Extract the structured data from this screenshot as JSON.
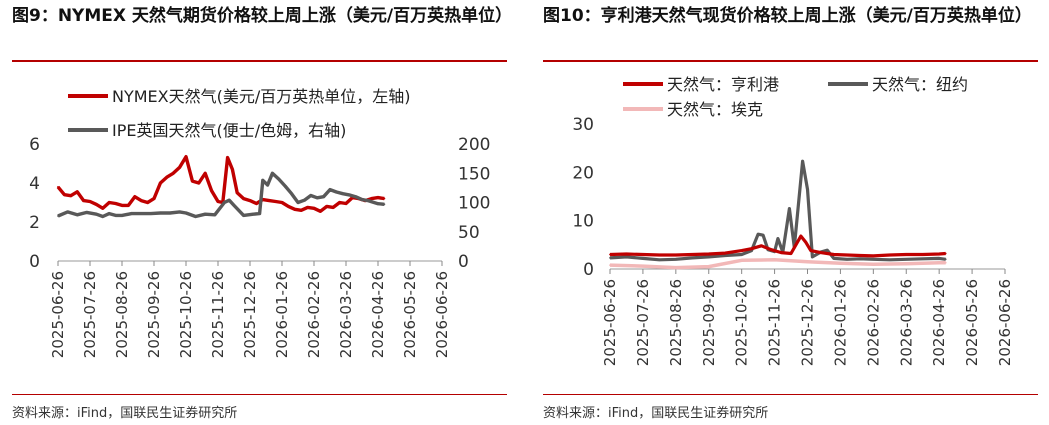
{
  "colors": {
    "accent_rule": "#b40000",
    "nymex": "#c00000",
    "ipe": "#595959",
    "hh": "#c00000",
    "ny": "#595959",
    "ek": "#f2b8b8"
  },
  "left_panel": {
    "title": "图9：NYMEX 天然气期货价格较上周上涨（美元/百万英热单位）",
    "source": "资料来源：iFind，国联民生证券研究所"
  },
  "right_panel": {
    "title": "图10：亨利港天然气现货价格较上周上涨（美元/百万英热单位）",
    "source": "资料来源：iFind，国联民生证券研究所"
  },
  "chart_data": [
    {
      "type": "line",
      "x": [
        "2025-06-26",
        "2025-07-26",
        "2025-08-26",
        "2025-09-26",
        "2025-10-26",
        "2025-11-26",
        "2025-12-26",
        "2026-01-26",
        "2026-02-26",
        "2026-03-26",
        "2026-04-26",
        "2026-05-26",
        "2026-06-26"
      ],
      "y_left_ticks": [
        "0",
        "2",
        "4",
        "6"
      ],
      "y_right_ticks": [
        "0",
        "50",
        "100",
        "150",
        "200"
      ],
      "ylim_left": [
        0,
        6
      ],
      "ylim_right": [
        0,
        200
      ],
      "legend_position": "top-left",
      "series": [
        {
          "name": "NYMEX天然气(美元/百万英热单位，左轴)",
          "axis": "left",
          "color_key": "nymex",
          "points": [
            [
              0,
              3.8
            ],
            [
              0.2,
              3.4
            ],
            [
              0.4,
              3.35
            ],
            [
              0.6,
              3.55
            ],
            [
              0.8,
              3.1
            ],
            [
              1.0,
              3.05
            ],
            [
              1.2,
              2.9
            ],
            [
              1.4,
              2.7
            ],
            [
              1.6,
              3.0
            ],
            [
              1.8,
              2.95
            ],
            [
              2.0,
              2.85
            ],
            [
              2.2,
              2.85
            ],
            [
              2.4,
              3.3
            ],
            [
              2.6,
              3.1
            ],
            [
              2.8,
              3.0
            ],
            [
              3.0,
              3.2
            ],
            [
              3.2,
              4.0
            ],
            [
              3.4,
              4.3
            ],
            [
              3.6,
              4.5
            ],
            [
              3.8,
              4.8
            ],
            [
              4.0,
              5.35
            ],
            [
              4.2,
              4.1
            ],
            [
              4.4,
              4.0
            ],
            [
              4.6,
              4.5
            ],
            [
              4.8,
              3.6
            ],
            [
              5.0,
              3.05
            ],
            [
              5.15,
              3.0
            ],
            [
              5.3,
              5.3
            ],
            [
              5.45,
              4.7
            ],
            [
              5.6,
              3.5
            ],
            [
              5.8,
              3.2
            ],
            [
              6.0,
              3.1
            ],
            [
              6.2,
              2.95
            ],
            [
              6.4,
              3.15
            ],
            [
              6.6,
              3.1
            ],
            [
              6.8,
              3.05
            ],
            [
              7.0,
              3.0
            ],
            [
              7.2,
              2.8
            ],
            [
              7.4,
              2.65
            ],
            [
              7.6,
              2.6
            ],
            [
              7.8,
              2.75
            ],
            [
              8.0,
              2.7
            ],
            [
              8.2,
              2.55
            ],
            [
              8.4,
              2.8
            ],
            [
              8.6,
              2.75
            ],
            [
              8.8,
              3.0
            ],
            [
              9.0,
              2.95
            ],
            [
              9.2,
              3.25
            ],
            [
              9.4,
              3.2
            ],
            [
              9.6,
              3.1
            ],
            [
              9.8,
              3.2
            ],
            [
              10.0,
              3.25
            ],
            [
              10.2,
              3.2
            ]
          ]
        },
        {
          "name": "IPE英国天然气(便士/色姆，右轴)",
          "axis": "right",
          "color_key": "ipe",
          "points": [
            [
              0,
              77
            ],
            [
              0.3,
              84
            ],
            [
              0.6,
              79
            ],
            [
              0.9,
              83
            ],
            [
              1.2,
              80
            ],
            [
              1.4,
              76
            ],
            [
              1.6,
              81
            ],
            [
              1.8,
              78
            ],
            [
              2.0,
              78
            ],
            [
              2.3,
              81
            ],
            [
              2.6,
              81
            ],
            [
              2.9,
              81
            ],
            [
              3.2,
              82
            ],
            [
              3.5,
              82
            ],
            [
              3.8,
              84
            ],
            [
              4.0,
              82
            ],
            [
              4.3,
              76
            ],
            [
              4.6,
              80
            ],
            [
              4.9,
              79
            ],
            [
              5.2,
              100
            ],
            [
              5.35,
              104
            ],
            [
              5.5,
              95
            ],
            [
              5.8,
              78
            ],
            [
              6.1,
              80
            ],
            [
              6.3,
              81
            ],
            [
              6.4,
              138
            ],
            [
              6.55,
              130
            ],
            [
              6.7,
              150
            ],
            [
              6.9,
              140
            ],
            [
              7.1,
              128
            ],
            [
              7.3,
              115
            ],
            [
              7.5,
              100
            ],
            [
              7.7,
              104
            ],
            [
              7.9,
              112
            ],
            [
              8.1,
              108
            ],
            [
              8.3,
              110
            ],
            [
              8.5,
              122
            ],
            [
              8.7,
              118
            ],
            [
              8.9,
              115
            ],
            [
              9.1,
              113
            ],
            [
              9.3,
              110
            ],
            [
              9.5,
              105
            ],
            [
              9.7,
              103
            ],
            [
              10.0,
              98
            ],
            [
              10.2,
              97
            ]
          ]
        }
      ]
    },
    {
      "type": "line",
      "x": [
        "2025-06-26",
        "2025-07-26",
        "2025-08-26",
        "2025-09-26",
        "2025-10-26",
        "2025-11-26",
        "2025-12-26",
        "2026-01-26",
        "2026-02-26",
        "2026-03-26",
        "2026-04-26",
        "2026-05-26",
        "2026-06-26"
      ],
      "y_ticks": [
        "0",
        "10",
        "20",
        "30"
      ],
      "ylim": [
        0,
        30
      ],
      "legend_position": "top",
      "series": [
        {
          "name": "天然气：亨利港",
          "color_key": "hh",
          "points": [
            [
              0,
              3.0
            ],
            [
              0.5,
              3.1
            ],
            [
              1.0,
              3.0
            ],
            [
              1.5,
              2.9
            ],
            [
              2.0,
              2.9
            ],
            [
              2.5,
              3.0
            ],
            [
              3.0,
              3.1
            ],
            [
              3.5,
              3.3
            ],
            [
              4.0,
              3.8
            ],
            [
              4.3,
              4.2
            ],
            [
              4.6,
              4.8
            ],
            [
              4.9,
              4.0
            ],
            [
              5.2,
              3.4
            ],
            [
              5.5,
              3.2
            ],
            [
              5.8,
              6.8
            ],
            [
              5.95,
              5.5
            ],
            [
              6.1,
              3.8
            ],
            [
              6.4,
              3.4
            ],
            [
              6.8,
              3.0
            ],
            [
              7.2,
              2.9
            ],
            [
              7.6,
              2.8
            ],
            [
              8.0,
              2.7
            ],
            [
              8.5,
              2.9
            ],
            [
              9.0,
              3.0
            ],
            [
              9.5,
              3.0
            ],
            [
              10.0,
              3.1
            ],
            [
              10.2,
              3.2
            ]
          ]
        },
        {
          "name": "天然气：纽约",
          "color_key": "ny",
          "points": [
            [
              0,
              2.3
            ],
            [
              0.5,
              2.5
            ],
            [
              1.0,
              2.2
            ],
            [
              1.5,
              1.9
            ],
            [
              2.0,
              2.0
            ],
            [
              2.5,
              2.3
            ],
            [
              3.0,
              2.5
            ],
            [
              3.5,
              2.8
            ],
            [
              4.0,
              3.0
            ],
            [
              4.3,
              3.8
            ],
            [
              4.5,
              7.2
            ],
            [
              4.65,
              7.0
            ],
            [
              4.8,
              4.0
            ],
            [
              5.0,
              3.6
            ],
            [
              5.1,
              6.3
            ],
            [
              5.25,
              3.5
            ],
            [
              5.45,
              12.5
            ],
            [
              5.6,
              4.5
            ],
            [
              5.85,
              22.3
            ],
            [
              6.0,
              16.5
            ],
            [
              6.15,
              2.5
            ],
            [
              6.4,
              3.5
            ],
            [
              6.6,
              3.9
            ],
            [
              6.8,
              2.2
            ],
            [
              7.2,
              2.0
            ],
            [
              7.6,
              2.1
            ],
            [
              8.0,
              2.0
            ],
            [
              8.5,
              1.9
            ],
            [
              9.0,
              2.0
            ],
            [
              9.5,
              2.1
            ],
            [
              10.0,
              2.2
            ],
            [
              10.2,
              2.0
            ]
          ]
        },
        {
          "name": "天然气：埃克",
          "color_key": "ek",
          "points": [
            [
              0,
              0.8
            ],
            [
              1.0,
              0.6
            ],
            [
              2.0,
              0.3
            ],
            [
              3.0,
              0.5
            ],
            [
              4.0,
              1.8
            ],
            [
              5.0,
              1.9
            ],
            [
              6.0,
              1.5
            ],
            [
              7.0,
              1.2
            ],
            [
              8.0,
              1.0
            ],
            [
              9.0,
              1.1
            ],
            [
              10.0,
              1.3
            ],
            [
              10.2,
              1.3
            ]
          ]
        }
      ]
    }
  ]
}
